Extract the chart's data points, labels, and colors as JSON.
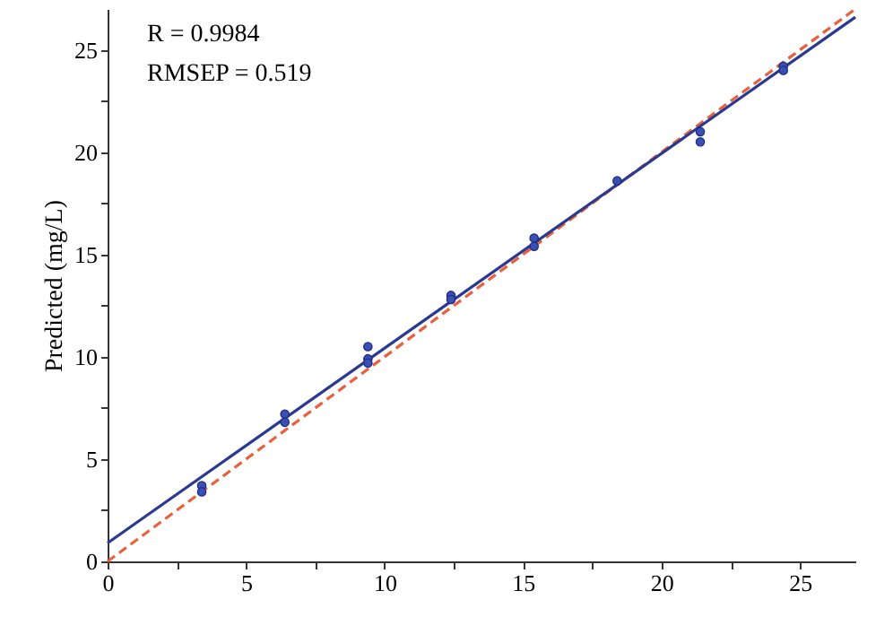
{
  "chart_data": {
    "type": "scatter",
    "ylabel": "Predicted (mg/L)",
    "annotations": [
      "R = 0.9984",
      "RMSEP = 0.519"
    ],
    "xlim": [
      0,
      27
    ],
    "ylim": [
      0,
      27
    ],
    "xticks": [
      0,
      {
        "value": 2.5,
        "label": null
      },
      5,
      {
        "value": 7.5,
        "label": null
      },
      10,
      {
        "value": 12.5,
        "label": null
      },
      15,
      {
        "value": 17.5,
        "label": null
      },
      20,
      {
        "value": 22.5,
        "label": null
      },
      25
    ],
    "yticks": [
      0,
      {
        "value": 2.5,
        "label": null
      },
      5,
      {
        "value": 7.5,
        "label": null
      },
      10,
      {
        "value": 12.5,
        "label": null
      },
      15,
      {
        "value": 17.5,
        "label": null
      },
      20,
      {
        "value": 22.5,
        "label": null
      },
      25
    ],
    "grid": false,
    "series": [
      {
        "type": "line",
        "color": "#e8603c",
        "line_style": "dashed",
        "x": [
          0,
          27
        ],
        "values": [
          0,
          27
        ]
      },
      {
        "type": "line",
        "color": "#2b3990",
        "line_style": "solid",
        "x": [
          0,
          27
        ],
        "values": [
          0.9,
          26.6
        ]
      },
      {
        "color": "#3a4fb5",
        "marker": "circle",
        "x": [
          3.4,
          3.4,
          6.4,
          6.4,
          9.4,
          9.4,
          9.4,
          12.4,
          12.4,
          15.4,
          15.4,
          18.4,
          21.4,
          21.4,
          24.4,
          24.4
        ],
        "values": [
          3.7,
          3.4,
          7.2,
          6.8,
          10.5,
          9.9,
          9.7,
          13.0,
          12.8,
          15.8,
          15.4,
          18.6,
          21.0,
          20.5,
          24.2,
          24.0
        ]
      }
    ]
  }
}
